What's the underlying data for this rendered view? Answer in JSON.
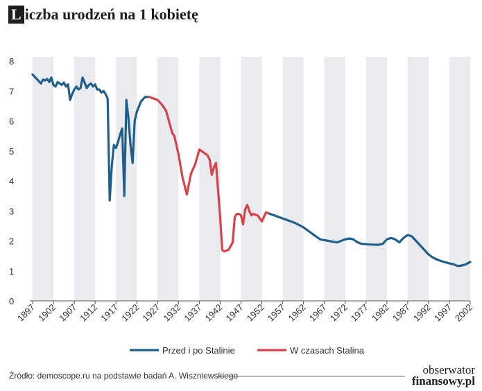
{
  "title_initial": "L",
  "title_rest": "iczba urodzeń na 1 kobietę",
  "source": "Źródło: demoscope.ru na podstawie badań A. Wiszniewskiego",
  "brand": {
    "line1": "obserwator",
    "line2": "finansowy.pl"
  },
  "colors": {
    "before_after": "#215f8b",
    "during": "#d6434a",
    "stripe": "#e9ebee",
    "text": "#333333"
  },
  "chart_data": {
    "type": "line",
    "title": "Liczba urodzeń na 1 kobietę",
    "xlabel": "",
    "ylabel": "",
    "xlim": [
      1897,
      2002
    ],
    "ylim": [
      0,
      8
    ],
    "y_ticks": [
      "0",
      "1",
      "2",
      "3",
      "4",
      "5",
      "6",
      "7",
      "8"
    ],
    "x_ticks": [
      "1897",
      "1902",
      "1907",
      "1912",
      "1917",
      "1922",
      "1927",
      "1932",
      "1937",
      "1942",
      "1947",
      "1952",
      "1957",
      "1962",
      "1967",
      "1972",
      "1977",
      "1982",
      "1987",
      "1992",
      "1997",
      "2002"
    ],
    "legend_position": "bottom",
    "series": [
      {
        "name": "Przed i po Stalinie",
        "color": "#215f8b",
        "points": [
          [
            1897,
            7.55
          ],
          [
            1898,
            7.4
          ],
          [
            1899,
            7.25
          ],
          [
            1899.5,
            7.38
          ],
          [
            1900,
            7.35
          ],
          [
            1900.5,
            7.4
          ],
          [
            1901,
            7.3
          ],
          [
            1901.5,
            7.45
          ],
          [
            1902,
            7.2
          ],
          [
            1902.5,
            7.15
          ],
          [
            1903,
            7.3
          ],
          [
            1904,
            7.2
          ],
          [
            1904.5,
            7.28
          ],
          [
            1905,
            7.15
          ],
          [
            1905.5,
            7.22
          ],
          [
            1906,
            6.7
          ],
          [
            1906.5,
            6.9
          ],
          [
            1907,
            7.05
          ],
          [
            1907.5,
            7.15
          ],
          [
            1908,
            7.05
          ],
          [
            1908.5,
            7.1
          ],
          [
            1909,
            7.45
          ],
          [
            1910,
            7.1
          ],
          [
            1910.5,
            7.2
          ],
          [
            1911,
            7.25
          ],
          [
            1911.5,
            7.15
          ],
          [
            1912,
            7.22
          ],
          [
            1912.5,
            7.05
          ],
          [
            1913,
            7.05
          ],
          [
            1913.5,
            6.95
          ],
          [
            1914,
            7.0
          ],
          [
            1914.5,
            6.9
          ],
          [
            1915,
            6.75
          ],
          [
            1915.5,
            3.35
          ],
          [
            1916,
            4.5
          ],
          [
            1916.5,
            5.2
          ],
          [
            1917,
            5.1
          ],
          [
            1917.5,
            5.3
          ],
          [
            1918,
            5.55
          ],
          [
            1918.5,
            5.75
          ],
          [
            1919,
            3.5
          ],
          [
            1919.5,
            6.7
          ],
          [
            1920,
            6.1
          ],
          [
            1920.5,
            5.2
          ],
          [
            1921,
            4.6
          ],
          [
            1921.5,
            6.0
          ],
          [
            1922,
            6.3
          ],
          [
            1923,
            6.65
          ],
          [
            1924,
            6.8
          ],
          [
            1925,
            6.8
          ]
        ]
      },
      {
        "name": "W czasach Stalina",
        "color": "#d6434a",
        "points": [
          [
            1925,
            6.8
          ],
          [
            1926,
            6.75
          ],
          [
            1927,
            6.7
          ],
          [
            1928,
            6.55
          ],
          [
            1929,
            6.35
          ],
          [
            1930,
            5.85
          ],
          [
            1930.5,
            5.6
          ],
          [
            1931,
            5.5
          ],
          [
            1932,
            4.9
          ],
          [
            1933,
            4.1
          ],
          [
            1934,
            3.55
          ],
          [
            1935,
            4.25
          ],
          [
            1936,
            4.55
          ],
          [
            1937,
            5.05
          ],
          [
            1938,
            4.95
          ],
          [
            1939,
            4.85
          ],
          [
            1939.5,
            4.7
          ],
          [
            1940,
            4.2
          ],
          [
            1940.5,
            4.45
          ],
          [
            1941,
            4.6
          ],
          [
            1942,
            2.8
          ],
          [
            1942.5,
            1.7
          ],
          [
            1943,
            1.65
          ],
          [
            1944,
            1.7
          ],
          [
            1945,
            1.95
          ],
          [
            1945.5,
            2.8
          ],
          [
            1946,
            2.9
          ],
          [
            1946.5,
            2.9
          ],
          [
            1947,
            2.85
          ],
          [
            1947.5,
            2.55
          ],
          [
            1948,
            3.05
          ],
          [
            1948.5,
            3.2
          ],
          [
            1949,
            3.0
          ],
          [
            1949.5,
            2.85
          ],
          [
            1950,
            2.9
          ],
          [
            1951,
            2.85
          ],
          [
            1952,
            2.65
          ],
          [
            1953,
            2.95
          ],
          [
            1954,
            2.9
          ]
        ]
      },
      {
        "name": "Przed i po Stalinie",
        "color": "#215f8b",
        "points": [
          [
            1954,
            2.9
          ],
          [
            1955,
            2.85
          ],
          [
            1956,
            2.8
          ],
          [
            1958,
            2.7
          ],
          [
            1960,
            2.6
          ],
          [
            1962,
            2.45
          ],
          [
            1964,
            2.25
          ],
          [
            1966,
            2.05
          ],
          [
            1968,
            2.0
          ],
          [
            1970,
            1.95
          ],
          [
            1972,
            2.05
          ],
          [
            1973,
            2.08
          ],
          [
            1974,
            2.05
          ],
          [
            1975,
            1.95
          ],
          [
            1976,
            1.9
          ],
          [
            1978,
            1.88
          ],
          [
            1980,
            1.87
          ],
          [
            1981,
            1.9
          ],
          [
            1982,
            2.05
          ],
          [
            1983,
            2.1
          ],
          [
            1984,
            2.05
          ],
          [
            1985,
            1.95
          ],
          [
            1986,
            2.1
          ],
          [
            1987,
            2.2
          ],
          [
            1988,
            2.15
          ],
          [
            1989,
            2.0
          ],
          [
            1990,
            1.85
          ],
          [
            1991,
            1.7
          ],
          [
            1992,
            1.55
          ],
          [
            1993,
            1.45
          ],
          [
            1994,
            1.38
          ],
          [
            1995,
            1.33
          ],
          [
            1996,
            1.29
          ],
          [
            1997,
            1.25
          ],
          [
            1998,
            1.22
          ],
          [
            1999,
            1.16
          ],
          [
            2000,
            1.18
          ],
          [
            2001,
            1.22
          ],
          [
            2002,
            1.3
          ]
        ]
      }
    ]
  },
  "legend": [
    {
      "label": "Przed i po Stalinie",
      "color": "#215f8b"
    },
    {
      "label": "W czasach Stalina",
      "color": "#d6434a"
    }
  ]
}
